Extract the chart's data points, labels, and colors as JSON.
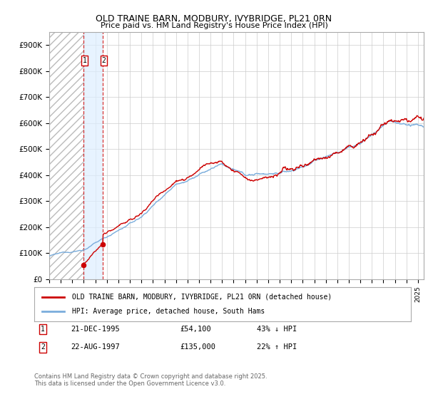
{
  "title": "OLD TRAINE BARN, MODBURY, IVYBRIDGE, PL21 0RN",
  "subtitle": "Price paid vs. HM Land Registry's House Price Index (HPI)",
  "ylim": [
    0,
    950000
  ],
  "yticks": [
    0,
    100000,
    200000,
    300000,
    400000,
    500000,
    600000,
    700000,
    800000,
    900000
  ],
  "ytick_labels": [
    "£0",
    "£100K",
    "£200K",
    "£300K",
    "£400K",
    "£500K",
    "£600K",
    "£700K",
    "£800K",
    "£900K"
  ],
  "sale1_date": 1995.97,
  "sale1_price": 54100,
  "sale1_label": "21-DEC-1995",
  "sale1_price_label": "£54,100",
  "sale1_pct": "43% ↓ HPI",
  "sale2_date": 1997.64,
  "sale2_price": 135000,
  "sale2_label": "22-AUG-1997",
  "sale2_price_label": "£135,000",
  "sale2_pct": "22% ↑ HPI",
  "hatch_start": 1993.0,
  "hatch_end": 1995.97,
  "xlim_start": 1993.0,
  "xlim_end": 2025.5,
  "legend_line1": "OLD TRAINE BARN, MODBURY, IVYBRIDGE, PL21 0RN (detached house)",
  "legend_line2": "HPI: Average price, detached house, South Hams",
  "footer": "Contains HM Land Registry data © Crown copyright and database right 2025.\nThis data is licensed under the Open Government Licence v3.0.",
  "red_color": "#cc0000",
  "blue_color": "#7aaddc",
  "hatch_color": "#cccccc",
  "background_color": "#ffffff",
  "grid_color": "#cccccc",
  "shade_color": "#ddeeff"
}
